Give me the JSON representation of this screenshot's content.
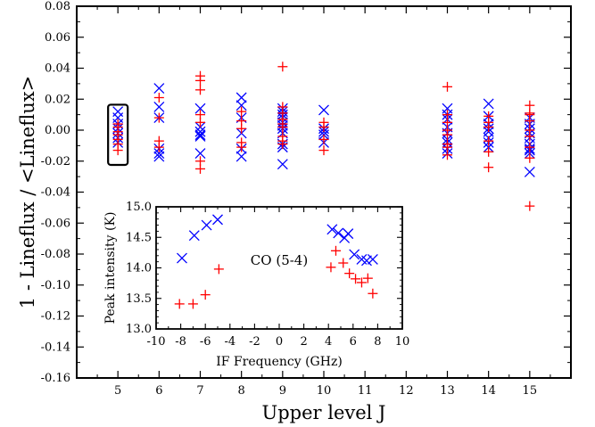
{
  "chart_data": [
    {
      "type": "scatter",
      "title": "",
      "xlabel": "Upper level J",
      "ylabel": "1 - Lineflux / <Lineflux>",
      "xlim": [
        4,
        16
      ],
      "ylim": [
        -0.16,
        0.08
      ],
      "xticks": [
        5,
        6,
        7,
        8,
        9,
        10,
        11,
        12,
        13,
        14,
        15
      ],
      "yticks": [
        -0.16,
        -0.14,
        -0.12,
        -0.1,
        -0.08,
        -0.06,
        -0.04,
        -0.02,
        0.0,
        0.02,
        0.04,
        0.06,
        0.08
      ],
      "xtick_labels": [
        "5",
        "6",
        "7",
        "8",
        "9",
        "10",
        "11",
        "12",
        "13",
        "14",
        "15"
      ],
      "ytick_labels": [
        "-0.16",
        "-0.14",
        "-0.12",
        "-0.10",
        "-0.08",
        "-0.06",
        "-0.04",
        "-0.02",
        "0.00",
        "0.02",
        "0.04",
        "0.06",
        "0.08"
      ],
      "highlight_box": {
        "x": 5,
        "y_range": [
          -0.019,
          0.013
        ],
        "color": "#000000"
      },
      "series": [
        {
          "marker": "x",
          "color": "#0000ff",
          "points": [
            [
              5,
              0.012
            ],
            [
              5,
              0.008
            ],
            [
              5,
              0.004
            ],
            [
              5,
              0.001
            ],
            [
              5,
              -0.002
            ],
            [
              5,
              -0.005
            ],
            [
              5,
              -0.008
            ],
            [
              6,
              0.027
            ],
            [
              6,
              0.015
            ],
            [
              6,
              0.008
            ],
            [
              6,
              -0.012
            ],
            [
              6,
              -0.015
            ],
            [
              6,
              -0.017
            ],
            [
              7,
              0.014
            ],
            [
              7,
              0.002
            ],
            [
              7,
              -0.001
            ],
            [
              7,
              -0.003
            ],
            [
              7,
              -0.004
            ],
            [
              7,
              -0.015
            ],
            [
              8,
              0.021
            ],
            [
              8,
              0.016
            ],
            [
              8,
              0.008
            ],
            [
              8,
              -0.002
            ],
            [
              8,
              -0.012
            ],
            [
              8,
              -0.017
            ],
            [
              9,
              0.014
            ],
            [
              9,
              0.012
            ],
            [
              9,
              0.01
            ],
            [
              9,
              0.008
            ],
            [
              9,
              0.005
            ],
            [
              9,
              0.003
            ],
            [
              9,
              0.001
            ],
            [
              9,
              -0.002
            ],
            [
              9,
              -0.009
            ],
            [
              9,
              -0.011
            ],
            [
              9,
              -0.022
            ],
            [
              10,
              0.013
            ],
            [
              10,
              0.001
            ],
            [
              10,
              -0.001
            ],
            [
              10,
              -0.003
            ],
            [
              10,
              -0.008
            ],
            [
              13,
              0.014
            ],
            [
              13,
              0.01
            ],
            [
              13,
              0.007
            ],
            [
              13,
              0.002
            ],
            [
              13,
              -0.002
            ],
            [
              13,
              -0.006
            ],
            [
              13,
              -0.008
            ],
            [
              13,
              -0.012
            ],
            [
              13,
              -0.015
            ],
            [
              14,
              0.017
            ],
            [
              14,
              0.009
            ],
            [
              14,
              0.004
            ],
            [
              14,
              0.001
            ],
            [
              14,
              -0.001
            ],
            [
              14,
              -0.005
            ],
            [
              14,
              -0.008
            ],
            [
              14,
              -0.011
            ],
            [
              15,
              0.008
            ],
            [
              15,
              0.004
            ],
            [
              15,
              0.001
            ],
            [
              15,
              -0.002
            ],
            [
              15,
              -0.005
            ],
            [
              15,
              -0.009
            ],
            [
              15,
              -0.012
            ],
            [
              15,
              -0.013
            ],
            [
              15,
              -0.015
            ],
            [
              15,
              -0.027
            ]
          ]
        },
        {
          "marker": "+",
          "color": "#ff0000",
          "points": [
            [
              5,
              0.004
            ],
            [
              5,
              0.002
            ],
            [
              5,
              -0.001
            ],
            [
              5,
              -0.003
            ],
            [
              5,
              -0.006
            ],
            [
              5,
              -0.009
            ],
            [
              5,
              -0.013
            ],
            [
              6,
              0.021
            ],
            [
              6,
              0.008
            ],
            [
              6,
              -0.007
            ],
            [
              6,
              -0.011
            ],
            [
              7,
              0.035
            ],
            [
              7,
              0.032
            ],
            [
              7,
              0.026
            ],
            [
              7,
              0.01
            ],
            [
              7,
              0.005
            ],
            [
              7,
              -0.02
            ],
            [
              7,
              -0.025
            ],
            [
              8,
              0.012
            ],
            [
              8,
              0.006
            ],
            [
              8,
              0.001
            ],
            [
              8,
              -0.008
            ],
            [
              8,
              -0.011
            ],
            [
              9,
              0.041
            ],
            [
              9,
              0.015
            ],
            [
              9,
              0.011
            ],
            [
              9,
              0.007
            ],
            [
              9,
              0.004
            ],
            [
              9,
              0.002
            ],
            [
              9,
              -0.004
            ],
            [
              9,
              -0.007
            ],
            [
              9,
              -0.009
            ],
            [
              10,
              0.005
            ],
            [
              10,
              0.002
            ],
            [
              10,
              -0.006
            ],
            [
              10,
              -0.013
            ],
            [
              13,
              0.028
            ],
            [
              13,
              0.01
            ],
            [
              13,
              0.005
            ],
            [
              13,
              0.0
            ],
            [
              13,
              -0.003
            ],
            [
              13,
              -0.009
            ],
            [
              13,
              -0.011
            ],
            [
              13,
              -0.016
            ],
            [
              14,
              0.009
            ],
            [
              14,
              0.005
            ],
            [
              14,
              0.002
            ],
            [
              14,
              -0.007
            ],
            [
              14,
              -0.014
            ],
            [
              14,
              -0.024
            ],
            [
              15,
              0.016
            ],
            [
              15,
              0.011
            ],
            [
              15,
              0.01
            ],
            [
              15,
              0.006
            ],
            [
              15,
              0.0
            ],
            [
              15,
              -0.004
            ],
            [
              15,
              -0.011
            ],
            [
              15,
              -0.018
            ],
            [
              15,
              -0.049
            ]
          ]
        }
      ]
    },
    {
      "type": "scatter",
      "title": "",
      "annotation": "CO (5-4)",
      "xlabel": "IF Frequency (GHz)",
      "ylabel": "Peak intensity (K)",
      "xlim": [
        -10,
        10
      ],
      "ylim": [
        13.0,
        15.0
      ],
      "xticks": [
        -10,
        -8,
        -6,
        -4,
        -2,
        0,
        2,
        4,
        6,
        8,
        10
      ],
      "yticks": [
        13.0,
        13.5,
        14.0,
        14.5,
        15.0
      ],
      "xtick_labels": [
        "-10",
        "-8",
        "-6",
        "-4",
        "-2",
        "0",
        "2",
        "4",
        "6",
        "8",
        "10"
      ],
      "ytick_labels": [
        "13.0",
        "13.5",
        "14.0",
        "14.5",
        "15.0"
      ],
      "series": [
        {
          "marker": "x",
          "color": "#0000ff",
          "points": [
            [
              -7.9,
              14.16
            ],
            [
              -6.9,
              14.53
            ],
            [
              -5.9,
              14.7
            ],
            [
              -5.0,
              14.79
            ],
            [
              4.3,
              14.63
            ],
            [
              4.8,
              14.57
            ],
            [
              5.3,
              14.49
            ],
            [
              5.6,
              14.56
            ],
            [
              6.1,
              14.22
            ],
            [
              6.7,
              14.14
            ],
            [
              7.1,
              14.12
            ],
            [
              7.6,
              14.14
            ]
          ]
        },
        {
          "marker": "+",
          "color": "#ff0000",
          "points": [
            [
              -8.1,
              13.41
            ],
            [
              -7.0,
              13.41
            ],
            [
              -6.0,
              13.56
            ],
            [
              -4.9,
              13.98
            ],
            [
              4.2,
              14.01
            ],
            [
              4.6,
              14.28
            ],
            [
              5.2,
              14.08
            ],
            [
              5.7,
              13.91
            ],
            [
              6.2,
              13.82
            ],
            [
              6.7,
              13.76
            ],
            [
              7.2,
              13.83
            ],
            [
              7.6,
              13.58
            ]
          ]
        }
      ]
    }
  ]
}
